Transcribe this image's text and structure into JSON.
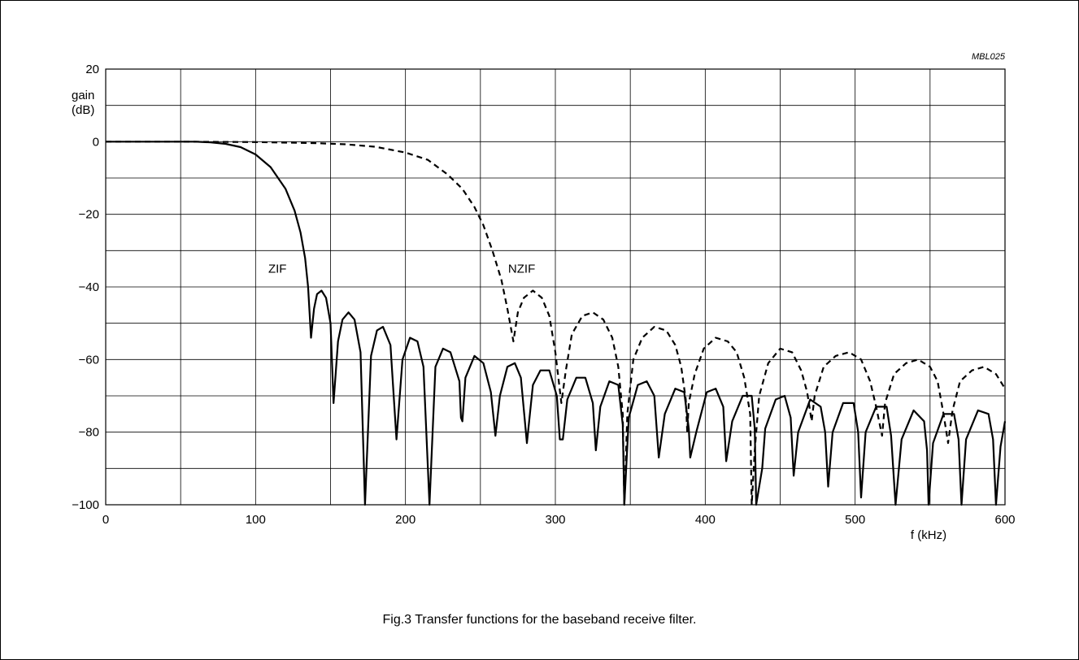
{
  "figure_code": "MBL025",
  "caption": "Fig.3  Transfer functions for the baseband receive filter.",
  "chart_data": {
    "type": "line",
    "title": "",
    "xlabel": "f (kHz)",
    "ylabel": [
      "gain",
      "(dB)"
    ],
    "xlim": [
      0,
      600
    ],
    "ylim": [
      -100,
      20
    ],
    "x_ticks": [
      0,
      100,
      200,
      300,
      400,
      500,
      600
    ],
    "y_ticks": [
      20,
      0,
      -20,
      -40,
      -60,
      -80,
      -100
    ],
    "x_grid_step": 50,
    "y_grid_step": 10,
    "grid": true,
    "series": [
      {
        "name": "ZIF",
        "style": "solid",
        "color": "#000000",
        "points": [
          [
            0,
            0
          ],
          [
            20,
            0
          ],
          [
            40,
            0
          ],
          [
            60,
            0
          ],
          [
            70,
            -0.2
          ],
          [
            80,
            -0.6
          ],
          [
            90,
            -1.5
          ],
          [
            100,
            -3.5
          ],
          [
            110,
            -7
          ],
          [
            120,
            -13
          ],
          [
            126,
            -19
          ],
          [
            130,
            -25
          ],
          [
            133,
            -32
          ],
          [
            135,
            -40
          ],
          [
            137,
            -54
          ],
          [
            139,
            -46
          ],
          [
            141,
            -42
          ],
          [
            144,
            -41
          ],
          [
            147,
            -43
          ],
          [
            150,
            -50
          ],
          [
            152,
            -72
          ],
          [
            155,
            -55
          ],
          [
            158,
            -49
          ],
          [
            162,
            -47
          ],
          [
            166,
            -49
          ],
          [
            170,
            -58
          ],
          [
            173,
            -100
          ],
          [
            177,
            -59
          ],
          [
            181,
            -52
          ],
          [
            185,
            -51
          ],
          [
            190,
            -56
          ],
          [
            194,
            -82
          ],
          [
            198,
            -60
          ],
          [
            203,
            -54
          ],
          [
            208,
            -55
          ],
          [
            212,
            -62
          ],
          [
            216,
            -100
          ],
          [
            220,
            -62
          ],
          [
            225,
            -57
          ],
          [
            230,
            -58
          ],
          [
            236,
            -66
          ],
          [
            237,
            -76
          ],
          [
            238,
            -77
          ],
          [
            240,
            -65
          ],
          [
            246,
            -59
          ],
          [
            252,
            -61
          ],
          [
            257,
            -69
          ],
          [
            260,
            -81
          ],
          [
            263,
            -70
          ],
          [
            268,
            -62
          ],
          [
            273,
            -61
          ],
          [
            277,
            -65
          ],
          [
            281,
            -83
          ],
          [
            285,
            -67
          ],
          [
            290,
            -63
          ],
          [
            296,
            -63
          ],
          [
            301,
            -70
          ],
          [
            303,
            -82
          ],
          [
            305,
            -82
          ],
          [
            308,
            -71
          ],
          [
            314,
            -65
          ],
          [
            320,
            -65
          ],
          [
            325,
            -72
          ],
          [
            327,
            -85
          ],
          [
            330,
            -73
          ],
          [
            336,
            -66
          ],
          [
            342,
            -67
          ],
          [
            345,
            -78
          ],
          [
            346,
            -100
          ],
          [
            349,
            -76
          ],
          [
            355,
            -67
          ],
          [
            361,
            -66
          ],
          [
            366,
            -70
          ],
          [
            369,
            -87
          ],
          [
            373,
            -75
          ],
          [
            380,
            -68
          ],
          [
            386,
            -69
          ],
          [
            389,
            -79
          ],
          [
            390,
            -87
          ],
          [
            394,
            -80
          ],
          [
            401,
            -69
          ],
          [
            407,
            -68
          ],
          [
            412,
            -73
          ],
          [
            414,
            -88
          ],
          [
            418,
            -77
          ],
          [
            425,
            -70
          ],
          [
            431,
            -70
          ],
          [
            433,
            -79
          ],
          [
            434,
            -100
          ],
          [
            438,
            -90
          ],
          [
            440,
            -79
          ],
          [
            447,
            -71
          ],
          [
            453,
            -70
          ],
          [
            457,
            -76
          ],
          [
            459,
            -92
          ],
          [
            462,
            -80
          ],
          [
            470,
            -71
          ],
          [
            477,
            -73
          ],
          [
            480,
            -80
          ],
          [
            482,
            -95
          ],
          [
            485,
            -80
          ],
          [
            492,
            -72
          ],
          [
            499,
            -72
          ],
          [
            502,
            -80
          ],
          [
            504,
            -98
          ],
          [
            507,
            -80
          ],
          [
            514,
            -73
          ],
          [
            521,
            -73
          ],
          [
            524,
            -81
          ],
          [
            527,
            -100
          ],
          [
            531,
            -82
          ],
          [
            539,
            -74
          ],
          [
            546,
            -77
          ],
          [
            548,
            -85
          ],
          [
            549,
            -100
          ],
          [
            552,
            -83
          ],
          [
            559,
            -75
          ],
          [
            566,
            -75
          ],
          [
            569,
            -82
          ],
          [
            571,
            -100
          ],
          [
            574,
            -82
          ],
          [
            582,
            -74
          ],
          [
            589,
            -75
          ],
          [
            592,
            -82
          ],
          [
            594,
            -100
          ],
          [
            597,
            -84
          ],
          [
            600,
            -77
          ]
        ]
      },
      {
        "name": "NZIF",
        "style": "dashed",
        "color": "#000000",
        "points": [
          [
            0,
            0
          ],
          [
            50,
            0
          ],
          [
            100,
            -0.1
          ],
          [
            140,
            -0.4
          ],
          [
            160,
            -0.7
          ],
          [
            180,
            -1.4
          ],
          [
            200,
            -3
          ],
          [
            215,
            -5
          ],
          [
            228,
            -9
          ],
          [
            238,
            -13
          ],
          [
            246,
            -18
          ],
          [
            252,
            -23
          ],
          [
            258,
            -30
          ],
          [
            264,
            -38
          ],
          [
            268,
            -46
          ],
          [
            272,
            -55
          ],
          [
            275,
            -47
          ],
          [
            279,
            -43
          ],
          [
            285,
            -41
          ],
          [
            291,
            -43
          ],
          [
            296,
            -48
          ],
          [
            300,
            -58
          ],
          [
            302,
            -65
          ],
          [
            304,
            -72
          ],
          [
            307,
            -63
          ],
          [
            311,
            -53
          ],
          [
            318,
            -48
          ],
          [
            325,
            -47
          ],
          [
            332,
            -49
          ],
          [
            338,
            -54
          ],
          [
            342,
            -62
          ],
          [
            345,
            -75
          ],
          [
            346,
            -100
          ],
          [
            348,
            -75
          ],
          [
            352,
            -60
          ],
          [
            358,
            -54
          ],
          [
            366,
            -51
          ],
          [
            374,
            -52
          ],
          [
            380,
            -56
          ],
          [
            384,
            -62
          ],
          [
            387,
            -71
          ],
          [
            388,
            -80
          ],
          [
            389,
            -72
          ],
          [
            393,
            -64
          ],
          [
            399,
            -57
          ],
          [
            407,
            -54
          ],
          [
            415,
            -55
          ],
          [
            421,
            -58
          ],
          [
            426,
            -65
          ],
          [
            430,
            -75
          ],
          [
            431,
            -100
          ],
          [
            433,
            -85
          ],
          [
            436,
            -70
          ],
          [
            442,
            -61
          ],
          [
            450,
            -57
          ],
          [
            458,
            -58
          ],
          [
            464,
            -63
          ],
          [
            468,
            -69
          ],
          [
            471,
            -77
          ],
          [
            473,
            -70
          ],
          [
            479,
            -62
          ],
          [
            487,
            -59
          ],
          [
            496,
            -58
          ],
          [
            504,
            -60
          ],
          [
            510,
            -66
          ],
          [
            514,
            -73
          ],
          [
            518,
            -81
          ],
          [
            520,
            -72
          ],
          [
            526,
            -64
          ],
          [
            534,
            -61
          ],
          [
            542,
            -60
          ],
          [
            550,
            -62
          ],
          [
            555,
            -66
          ],
          [
            559,
            -75
          ],
          [
            562,
            -83
          ],
          [
            565,
            -74
          ],
          [
            570,
            -66
          ],
          [
            578,
            -63
          ],
          [
            586,
            -62
          ],
          [
            594,
            -64
          ],
          [
            600,
            -68
          ]
        ]
      }
    ],
    "annotations": [
      {
        "text": "ZIF",
        "x": 115,
        "y": -35
      },
      {
        "text": "NZIF",
        "x": 275,
        "y": -35
      }
    ]
  }
}
